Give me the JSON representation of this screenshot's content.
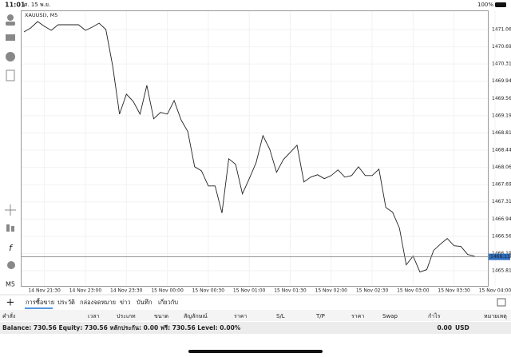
{
  "status_bar": {
    "time": "11:01",
    "date": "ศ. 15 พ.ย.",
    "battery": "100%"
  },
  "toolbar": {
    "timeframe": "M5"
  },
  "chart_data": {
    "type": "line",
    "title": "XAUUSD, M5",
    "color": "#222222",
    "grid": true,
    "categories": [
      null,
      null,
      null,
      "14 Nov 21:30",
      null,
      null,
      null,
      null,
      null,
      "14 Nov 23:00",
      null,
      null,
      null,
      null,
      null,
      "14 Nov 23:30",
      null,
      null,
      null,
      null,
      null,
      "15 Nov 00:00",
      null,
      null,
      null,
      null,
      null,
      "15 Nov 00:30",
      null,
      null,
      null,
      null,
      null,
      "15 Nov 01:00",
      null,
      null,
      null,
      null,
      null,
      "15 Nov 01:30",
      null,
      null,
      null,
      null,
      null,
      "15 Nov 02:00",
      null,
      null,
      null,
      null,
      null,
      "15 Nov 02:30",
      null,
      null,
      null,
      null,
      null,
      "15 Nov 03:00",
      null,
      null,
      null,
      null,
      null,
      "15 Nov 03:30",
      null,
      null,
      null,
      null,
      null,
      "15 Nov 04:00"
    ],
    "values": [
      1471.013,
      1471.1,
      1471.239,
      1471.134,
      1471.048,
      1471.169,
      1471.169,
      1471.169,
      1471.169,
      1471.048,
      1471.117,
      1471.204,
      1471.065,
      1470.266,
      1469.225,
      1469.659,
      1469.503,
      1469.225,
      1469.85,
      1469.121,
      1469.26,
      1469.225,
      1469.52,
      1469.103,
      1468.843,
      1468.079,
      1467.992,
      1467.662,
      1467.662,
      1467.072,
      1468.253,
      1468.131,
      1467.489,
      1467.819,
      1468.166,
      1468.756,
      1468.461,
      1467.958,
      1468.235,
      1468.392,
      1468.548,
      1467.749,
      1467.853,
      1467.905,
      1467.819,
      1467.888,
      1468.01,
      1467.853,
      1467.888,
      1468.079,
      1467.888,
      1467.888,
      1468.027,
      1467.194,
      1467.09,
      1466.742,
      1465.944,
      1466.135,
      1465.788,
      1465.84,
      1466.256,
      1466.395,
      1466.517,
      1466.36,
      1466.343,
      1466.169,
      1466.135,
      null,
      null,
      null
    ],
    "ylim": [
      1465.485,
      1471.465
    ],
    "yticks": [
      1465.815,
      {
        "value": 1466.19,
        "label": "1466.190"
      },
      1466.565,
      {
        "value": 1466.94,
        "label": "1466.940"
      },
      1467.315,
      {
        "value": 1467.69,
        "label": "1467.690"
      },
      1468.065,
      {
        "value": 1468.44,
        "label": "1468.440"
      },
      1468.815,
      {
        "value": 1469.19,
        "label": "1469.190"
      },
      1469.565,
      {
        "value": 1469.94,
        "label": "1469.940"
      },
      1470.315,
      {
        "value": 1470.69,
        "label": "1470.690"
      },
      1471.065
    ],
    "current_price": 1466.118
  },
  "tabs": [
    "การซื้อขาย",
    "ประวัติ",
    "กล่องจดหมาย",
    "ข่าว",
    "บันทึก",
    "เกี่ยวกับ"
  ],
  "table": {
    "headers": [
      "คำสั่ง",
      "เวลา",
      "ประเภท",
      "ขนาด",
      "สัญลักษณ์",
      "ราคา",
      "S/L",
      "T/P",
      "ราคา",
      "Swap",
      "กำไร",
      "หมายเหตุ"
    ]
  },
  "balance": {
    "summary": "Balance: 730.56 Equity: 730.56 หลักประกัน: 0.00 ฟรี: 730.56 Level: 0.00%",
    "profit": "0.00",
    "currency": "USD"
  }
}
